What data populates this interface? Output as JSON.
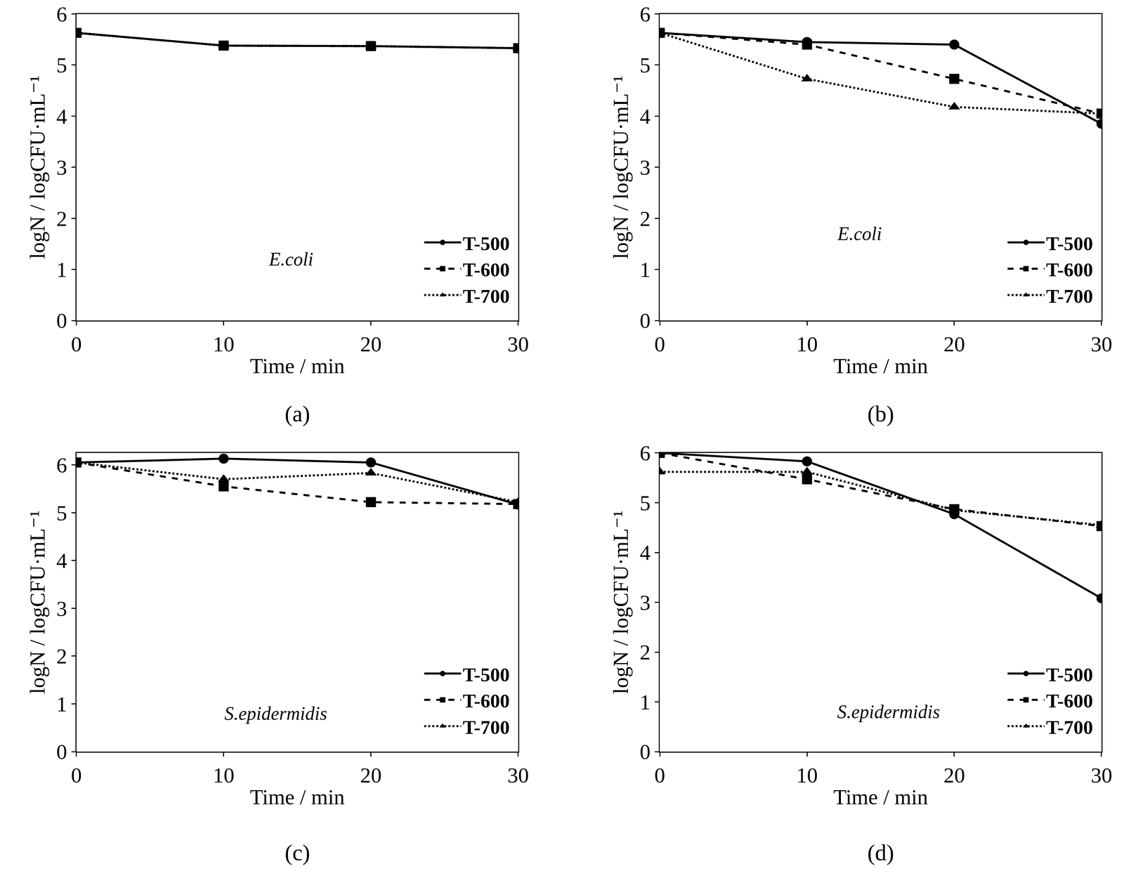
{
  "chart_data": [
    {
      "type": "line",
      "panel": "(a)",
      "annotation": "E.coli",
      "x_label": "Time / min",
      "y_label": "logN / logCFU·mL⁻¹",
      "x": [
        0,
        10,
        20,
        30
      ],
      "xlim": [
        0,
        30
      ],
      "xticks": [
        0,
        10,
        20,
        30
      ],
      "ylim": [
        0,
        6
      ],
      "yticks": [
        0,
        1,
        2,
        3,
        4,
        5,
        6
      ],
      "grid": false,
      "legend": "lower right",
      "series": [
        {
          "name": "T-500",
          "color": "#000000",
          "marker": "circle",
          "line_style": "solid",
          "values": [
            5.63,
            5.38,
            5.37,
            5.33
          ]
        },
        {
          "name": "T-600",
          "color": "#000000",
          "marker": "square",
          "line_style": "dash",
          "values": [
            5.63,
            5.38,
            5.37,
            5.33
          ]
        },
        {
          "name": "T-700",
          "color": "#000000",
          "marker": "triangle",
          "line_style": "dot",
          "values": [
            5.63,
            5.38,
            5.37,
            5.33
          ]
        }
      ]
    },
    {
      "type": "line",
      "panel": "(b)",
      "annotation": "E.coli",
      "x_label": "Time / min",
      "y_label": "logN / logCFU·mL⁻¹",
      "x": [
        0,
        10,
        20,
        30
      ],
      "xlim": [
        0,
        30
      ],
      "xticks": [
        0,
        10,
        20,
        30
      ],
      "ylim": [
        0,
        6
      ],
      "yticks": [
        0,
        1,
        2,
        3,
        4,
        5,
        6
      ],
      "grid": false,
      "legend": "lower right",
      "series": [
        {
          "name": "T-500",
          "color": "#000000",
          "marker": "circle",
          "line_style": "solid",
          "values": [
            5.63,
            5.45,
            5.4,
            3.85
          ]
        },
        {
          "name": "T-600",
          "color": "#000000",
          "marker": "square",
          "line_style": "dash",
          "values": [
            5.63,
            5.4,
            4.73,
            4.05
          ]
        },
        {
          "name": "T-700",
          "color": "#000000",
          "marker": "triangle",
          "line_style": "dot",
          "values": [
            5.63,
            4.73,
            4.18,
            4.05
          ]
        }
      ]
    },
    {
      "type": "line",
      "panel": "(c)",
      "annotation": "S.epidermidis",
      "x_label": "Time / min",
      "y_label": "logN / logCFU·mL⁻¹",
      "x": [
        0,
        10,
        20,
        30
      ],
      "xlim": [
        0,
        30
      ],
      "xticks": [
        0,
        10,
        20,
        30
      ],
      "ylim": [
        0,
        6.25
      ],
      "yticks": [
        0,
        1,
        2,
        3,
        4,
        5,
        6
      ],
      "grid": false,
      "legend": "lower right",
      "series": [
        {
          "name": "T-500",
          "color": "#000000",
          "marker": "circle",
          "line_style": "solid",
          "values": [
            6.05,
            6.13,
            6.05,
            5.17
          ]
        },
        {
          "name": "T-600",
          "color": "#000000",
          "marker": "square",
          "line_style": "dash",
          "values": [
            6.05,
            5.55,
            5.22,
            5.18
          ]
        },
        {
          "name": "T-700",
          "color": "#000000",
          "marker": "triangle",
          "line_style": "dot",
          "values": [
            6.05,
            5.7,
            5.83,
            5.22
          ]
        }
      ]
    },
    {
      "type": "line",
      "panel": "(d)",
      "annotation": "S.epidermidis",
      "x_label": "Time / min",
      "y_label": "logN / logCFU·mL⁻¹",
      "x": [
        0,
        10,
        20,
        30
      ],
      "xlim": [
        0,
        30
      ],
      "xticks": [
        0,
        10,
        20,
        30
      ],
      "ylim": [
        0,
        6
      ],
      "yticks": [
        0,
        1,
        2,
        3,
        4,
        5,
        6
      ],
      "grid": false,
      "legend": "lower right",
      "series": [
        {
          "name": "T-500",
          "color": "#000000",
          "marker": "circle",
          "line_style": "solid",
          "values": [
            6.0,
            5.83,
            4.77,
            3.08
          ]
        },
        {
          "name": "T-600",
          "color": "#000000",
          "marker": "square",
          "line_style": "dash",
          "values": [
            6.0,
            5.47,
            4.87,
            4.53
          ]
        },
        {
          "name": "T-700",
          "color": "#000000",
          "marker": "triangle",
          "line_style": "dot",
          "values": [
            5.62,
            5.62,
            4.85,
            4.55
          ]
        }
      ]
    }
  ]
}
